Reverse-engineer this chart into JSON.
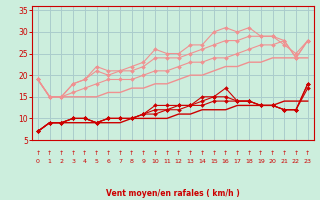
{
  "bg_color": "#cceedd",
  "grid_color": "#aacccc",
  "xlabel": "Vent moyen/en rafales ( km/h )",
  "xlabel_color": "#cc0000",
  "tick_color": "#cc0000",
  "xlim": [
    -0.5,
    23.5
  ],
  "ylim": [
    5,
    36
  ],
  "yticks": [
    5,
    10,
    15,
    20,
    25,
    30,
    35
  ],
  "xticks": [
    0,
    1,
    2,
    3,
    4,
    5,
    6,
    7,
    8,
    9,
    10,
    11,
    12,
    13,
    14,
    15,
    16,
    17,
    18,
    19,
    20,
    21,
    22,
    23
  ],
  "series": [
    {
      "x": [
        0,
        1,
        2,
        3,
        4,
        5,
        6,
        7,
        8,
        9,
        10,
        11,
        12,
        13,
        14,
        15,
        16,
        17,
        18,
        19,
        20,
        21,
        22,
        23
      ],
      "y": [
        19,
        15,
        15,
        18,
        19,
        22,
        21,
        21,
        22,
        23,
        26,
        25,
        25,
        27,
        27,
        30,
        31,
        30,
        31,
        29,
        29,
        27,
        25,
        28
      ],
      "color": "#f09090",
      "marker": "D",
      "markersize": 2,
      "linewidth": 0.8
    },
    {
      "x": [
        0,
        1,
        2,
        3,
        4,
        5,
        6,
        7,
        8,
        9,
        10,
        11,
        12,
        13,
        14,
        15,
        16,
        17,
        18,
        19,
        20,
        21,
        22,
        23
      ],
      "y": [
        19,
        15,
        15,
        18,
        19,
        21,
        20,
        21,
        21,
        22,
        24,
        24,
        24,
        25,
        26,
        27,
        28,
        28,
        29,
        29,
        29,
        28,
        24,
        28
      ],
      "color": "#f09090",
      "marker": "D",
      "markersize": 2,
      "linewidth": 0.8
    },
    {
      "x": [
        0,
        1,
        2,
        3,
        4,
        5,
        6,
        7,
        8,
        9,
        10,
        11,
        12,
        13,
        14,
        15,
        16,
        17,
        18,
        19,
        20,
        21,
        22,
        23
      ],
      "y": [
        19,
        15,
        15,
        16,
        17,
        18,
        19,
        19,
        19,
        20,
        21,
        21,
        22,
        23,
        23,
        24,
        24,
        25,
        26,
        27,
        27,
        28,
        24,
        28
      ],
      "color": "#f09090",
      "marker": "D",
      "markersize": 2,
      "linewidth": 0.8
    },
    {
      "x": [
        0,
        1,
        2,
        3,
        4,
        5,
        6,
        7,
        8,
        9,
        10,
        11,
        12,
        13,
        14,
        15,
        16,
        17,
        18,
        19,
        20,
        21,
        22,
        23
      ],
      "y": [
        19,
        15,
        15,
        15,
        15,
        15,
        16,
        16,
        17,
        17,
        18,
        18,
        19,
        20,
        20,
        21,
        22,
        22,
        23,
        23,
        24,
        24,
        24,
        24
      ],
      "color": "#f09090",
      "marker": "None",
      "markersize": 0,
      "linewidth": 1.0
    },
    {
      "x": [
        0,
        1,
        2,
        3,
        4,
        5,
        6,
        7,
        8,
        9,
        10,
        11,
        12,
        13,
        14,
        15,
        16,
        17,
        18,
        19,
        20,
        21,
        22,
        23
      ],
      "y": [
        7,
        9,
        9,
        10,
        10,
        9,
        10,
        10,
        10,
        11,
        13,
        13,
        13,
        13,
        15,
        15,
        17,
        14,
        14,
        13,
        13,
        12,
        12,
        18
      ],
      "color": "#cc0000",
      "marker": "D",
      "markersize": 2,
      "linewidth": 0.8
    },
    {
      "x": [
        0,
        1,
        2,
        3,
        4,
        5,
        6,
        7,
        8,
        9,
        10,
        11,
        12,
        13,
        14,
        15,
        16,
        17,
        18,
        19,
        20,
        21,
        22,
        23
      ],
      "y": [
        7,
        9,
        9,
        10,
        10,
        9,
        10,
        10,
        10,
        11,
        12,
        12,
        13,
        13,
        14,
        15,
        15,
        14,
        14,
        13,
        13,
        12,
        12,
        18
      ],
      "color": "#cc0000",
      "marker": "D",
      "markersize": 2,
      "linewidth": 0.8
    },
    {
      "x": [
        0,
        1,
        2,
        3,
        4,
        5,
        6,
        7,
        8,
        9,
        10,
        11,
        12,
        13,
        14,
        15,
        16,
        17,
        18,
        19,
        20,
        21,
        22,
        23
      ],
      "y": [
        7,
        9,
        9,
        10,
        10,
        9,
        10,
        10,
        10,
        11,
        11,
        12,
        12,
        13,
        13,
        14,
        14,
        14,
        14,
        13,
        13,
        12,
        12,
        17
      ],
      "color": "#cc0000",
      "marker": "D",
      "markersize": 2,
      "linewidth": 0.8
    },
    {
      "x": [
        0,
        1,
        2,
        3,
        4,
        5,
        6,
        7,
        8,
        9,
        10,
        11,
        12,
        13,
        14,
        15,
        16,
        17,
        18,
        19,
        20,
        21,
        22,
        23
      ],
      "y": [
        7,
        9,
        9,
        9,
        9,
        9,
        9,
        9,
        10,
        10,
        10,
        10,
        11,
        11,
        12,
        12,
        12,
        13,
        13,
        13,
        13,
        14,
        14,
        14
      ],
      "color": "#cc0000",
      "marker": "None",
      "markersize": 0,
      "linewidth": 1.0
    }
  ]
}
